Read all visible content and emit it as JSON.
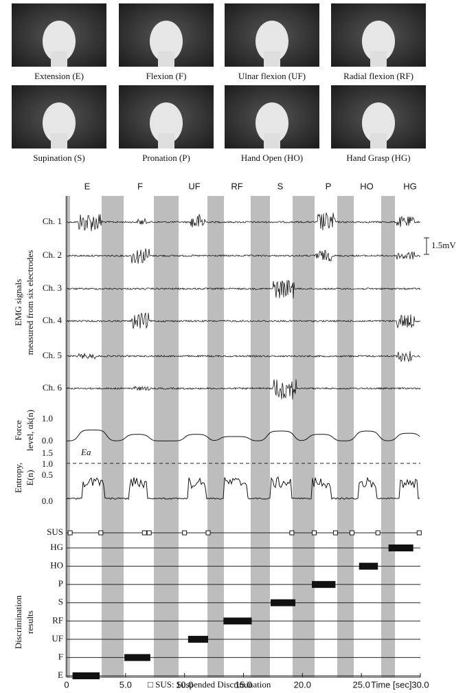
{
  "gestures": [
    "Extension (E)",
    "Flexion (F)",
    "Ulnar flexion (UF)",
    "Radial flexion (RF)",
    "Supination (S)",
    "Pronation (P)",
    "Hand Open (HO)",
    "Hand Grasp (HG)"
  ],
  "motion_labels": [
    "E",
    "F",
    "UF",
    "RF",
    "S",
    "P",
    "HO",
    "HG"
  ],
  "channels": [
    "Ch. 1",
    "Ch. 2",
    "Ch. 3",
    "Ch. 4",
    "Ch. 5",
    "Ch. 6"
  ],
  "scale_bar": "1.5mV",
  "emg_axis_title": [
    "EMG signals",
    "measured from six electrodes"
  ],
  "force_axis_title": [
    "Force",
    "level, αk(n)"
  ],
  "force_ticks": [
    "1.0",
    "0.0"
  ],
  "entropy_axis_title": [
    "Entropy,",
    "E(n)"
  ],
  "entropy_ticks": [
    "1.5",
    "1.0",
    "0.5",
    "0.0"
  ],
  "threshold_label": "Ea",
  "discrimination_axis_title": [
    "Discrimination",
    "results"
  ],
  "result_classes": [
    "SUS",
    "HG",
    "HO",
    "P",
    "S",
    "RF",
    "UF",
    "F",
    "E"
  ],
  "time_axis": {
    "label": "Time [sec]",
    "lim": [
      0,
      30
    ],
    "ticks": [
      0,
      {
        "value": 5,
        "label": "5.0"
      },
      {
        "value": 10,
        "label": "10.0"
      },
      {
        "value": 15,
        "label": "15.0"
      },
      {
        "value": 20,
        "label": "20.0"
      },
      {
        "value": 25,
        "label": "25.0"
      },
      {
        "value": 30,
        "label": "30.0"
      }
    ]
  },
  "discrimination_intervals": {
    "HG": [
      27.3,
      29.4
    ],
    "HO": [
      24.8,
      26.4
    ],
    "P": [
      20.8,
      22.8
    ],
    "S": [
      17.3,
      19.4
    ],
    "RF": [
      13.3,
      15.7
    ],
    "UF": [
      10.3,
      12.0
    ],
    "F": [
      4.9,
      7.1
    ],
    "E": [
      0.5,
      2.8
    ]
  },
  "legend": "□ SUS: Suspended Discrimination"
}
